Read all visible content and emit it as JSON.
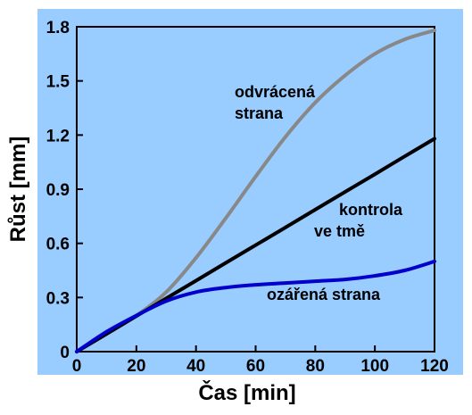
{
  "chart_data": {
    "type": "line",
    "title": "",
    "xlabel": "Čas [min]",
    "ylabel": "Růst [mm]",
    "xlim": [
      0,
      120
    ],
    "ylim": [
      0,
      1.8
    ],
    "x_ticks": [
      "0",
      "20",
      "40",
      "60",
      "80",
      "100",
      "120"
    ],
    "y_ticks": [
      "0",
      "0.3",
      "0.6",
      "0.9",
      "1.2",
      "1.5",
      "1.8"
    ],
    "grid": false,
    "background_color": "#99ccff",
    "x": [
      0,
      10,
      20,
      30,
      40,
      50,
      60,
      70,
      80,
      90,
      100,
      110,
      120
    ],
    "series": [
      {
        "name": "",
        "color": "#888888",
        "values": [
          0,
          0.1,
          0.2,
          0.33,
          0.52,
          0.74,
          0.97,
          1.19,
          1.38,
          1.53,
          1.65,
          1.73,
          1.78
        ]
      },
      {
        "name": "",
        "color": "#000000",
        "values": [
          0,
          0.098,
          0.197,
          0.295,
          0.393,
          0.492,
          0.59,
          0.688,
          0.787,
          0.885,
          0.983,
          1.082,
          1.18
        ]
      },
      {
        "name": "",
        "color": "#0000cc",
        "values": [
          0,
          0.11,
          0.2,
          0.28,
          0.33,
          0.355,
          0.37,
          0.38,
          0.39,
          0.4,
          0.42,
          0.45,
          0.5
        ]
      }
    ],
    "annotations": [
      {
        "lines": [
          "odvrácená",
          "strana"
        ]
      },
      {
        "lines": [
          "kontrola",
          "ve tmě"
        ]
      },
      {
        "lines": [
          "ozářená strana"
        ]
      }
    ]
  }
}
